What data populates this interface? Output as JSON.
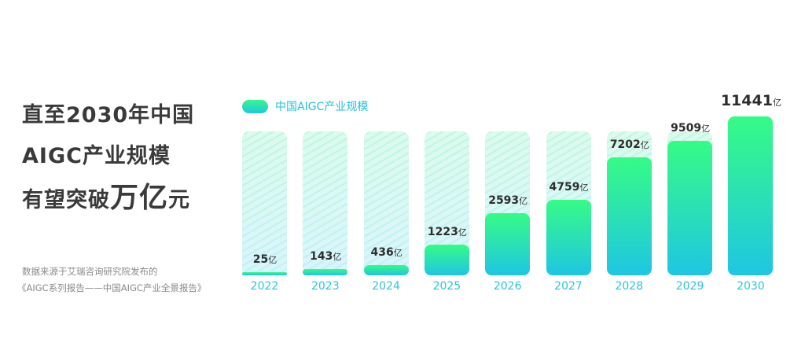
{
  "headline": {
    "line1": "直至2030年中国",
    "line2": "AIGC产业规模",
    "line3_prefix": "有望突破",
    "line3_emph": "万亿",
    "line3_suffix": "元"
  },
  "source": {
    "line1": "数据来源于艾瑞咨询研究院发布的",
    "line2": "《AIGC系列报告——中国AIGC产业全景报告》"
  },
  "chart_data": {
    "type": "bar",
    "categories": [
      "2022",
      "2023",
      "2024",
      "2025",
      "2026",
      "2027",
      "2028",
      "2029",
      "2030"
    ],
    "series": [
      {
        "name": "中国AIGC产业规模",
        "values": [
          25,
          143,
          436,
          1223,
          2593,
          4759,
          7202,
          9509,
          11441
        ]
      }
    ],
    "value_labels": [
      "25",
      "143",
      "436",
      "1223",
      "2593",
      "4759",
      "7202",
      "9509",
      "11441"
    ],
    "unit": "亿",
    "legend": "top-left",
    "grid": false,
    "colors": {
      "bar_top": "#36fb86",
      "bar_bottom": "#1fc6e2",
      "axis_label": "#2ec3db"
    }
  }
}
